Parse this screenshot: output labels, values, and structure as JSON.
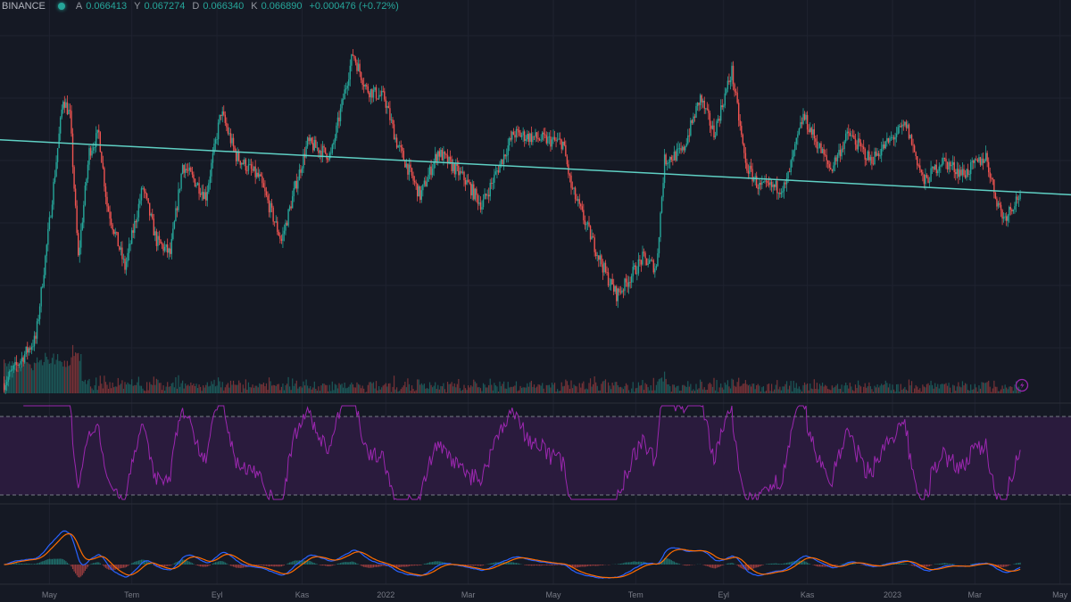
{
  "header": {
    "exchange": "BINANCE",
    "status_color": "#26a69a",
    "ohlc": [
      {
        "key": "A",
        "value": "0.066413"
      },
      {
        "key": "Y",
        "value": "0.067274"
      },
      {
        "key": "D",
        "value": "0.066340"
      },
      {
        "key": "K",
        "value": "0.066890"
      }
    ],
    "change": "+0.000476 (+0.72%)"
  },
  "colors": {
    "up": "#26a69a",
    "down": "#ef5350",
    "trendline": "#5fd0c4",
    "rsi": "#9c27b0",
    "rsi_band": "#2a1b3d",
    "macd": "#2962ff",
    "signal": "#ff6d00",
    "bg": "#151924"
  },
  "chart_data": {
    "type": "candlestick",
    "title": "",
    "xlabel": "",
    "ylabel": "",
    "x_unit": "day index",
    "ylim": [
      0.035,
      0.0979
    ],
    "x_ticks": [
      {
        "day": 36,
        "label": "May"
      },
      {
        "day": 96,
        "label": "Tem"
      },
      {
        "day": 158,
        "label": "Eyl"
      },
      {
        "day": 220,
        "label": "Kas"
      },
      {
        "day": 281,
        "label": "2022"
      },
      {
        "day": 341,
        "label": "Mar"
      },
      {
        "day": 403,
        "label": "May"
      },
      {
        "day": 463,
        "label": "Tem"
      },
      {
        "day": 527,
        "label": "Eyl"
      },
      {
        "day": 588,
        "label": "Kas"
      },
      {
        "day": 650,
        "label": "2023"
      },
      {
        "day": 710,
        "label": "Mar"
      },
      {
        "day": 772,
        "label": "May"
      }
    ],
    "close_keypoints": [
      [
        3,
        0.0365
      ],
      [
        26,
        0.0436
      ],
      [
        36,
        0.0622
      ],
      [
        46,
        0.0822
      ],
      [
        51,
        0.0793
      ],
      [
        57,
        0.0565
      ],
      [
        65,
        0.0736
      ],
      [
        72,
        0.0765
      ],
      [
        78,
        0.065
      ],
      [
        91,
        0.055
      ],
      [
        104,
        0.0679
      ],
      [
        114,
        0.0593
      ],
      [
        124,
        0.0572
      ],
      [
        133,
        0.0715
      ],
      [
        150,
        0.0665
      ],
      [
        161,
        0.08
      ],
      [
        172,
        0.0729
      ],
      [
        189,
        0.0693
      ],
      [
        205,
        0.0593
      ],
      [
        215,
        0.0679
      ],
      [
        224,
        0.075
      ],
      [
        241,
        0.0729
      ],
      [
        257,
        0.0893
      ],
      [
        267,
        0.0836
      ],
      [
        280,
        0.0822
      ],
      [
        289,
        0.075
      ],
      [
        306,
        0.0665
      ],
      [
        319,
        0.0736
      ],
      [
        338,
        0.0693
      ],
      [
        351,
        0.065
      ],
      [
        364,
        0.0715
      ],
      [
        374,
        0.0765
      ],
      [
        390,
        0.0758
      ],
      [
        410,
        0.075
      ],
      [
        416,
        0.0679
      ],
      [
        429,
        0.0607
      ],
      [
        442,
        0.0536
      ],
      [
        449,
        0.0507
      ],
      [
        455,
        0.0522
      ],
      [
        468,
        0.0565
      ],
      [
        478,
        0.055
      ],
      [
        484,
        0.0722
      ],
      [
        497,
        0.0736
      ],
      [
        510,
        0.0822
      ],
      [
        520,
        0.0765
      ],
      [
        533,
        0.0865
      ],
      [
        543,
        0.0715
      ],
      [
        553,
        0.0679
      ],
      [
        572,
        0.0679
      ],
      [
        585,
        0.0793
      ],
      [
        595,
        0.075
      ],
      [
        605,
        0.0708
      ],
      [
        618,
        0.0765
      ],
      [
        634,
        0.0722
      ],
      [
        650,
        0.0758
      ],
      [
        660,
        0.0779
      ],
      [
        673,
        0.0686
      ],
      [
        686,
        0.0722
      ],
      [
        702,
        0.07
      ],
      [
        718,
        0.0729
      ],
      [
        725,
        0.0665
      ],
      [
        731,
        0.0629
      ],
      [
        743,
        0.0669
      ]
    ],
    "trendline": {
      "start": [
        0,
        0.0755
      ],
      "end": [
        780,
        0.0667
      ]
    },
    "indicators": {
      "rsi": {
        "period": 14,
        "upper": 70,
        "lower": 30
      },
      "macd": {
        "fast": 12,
        "slow": 26,
        "signal": 9
      }
    }
  }
}
